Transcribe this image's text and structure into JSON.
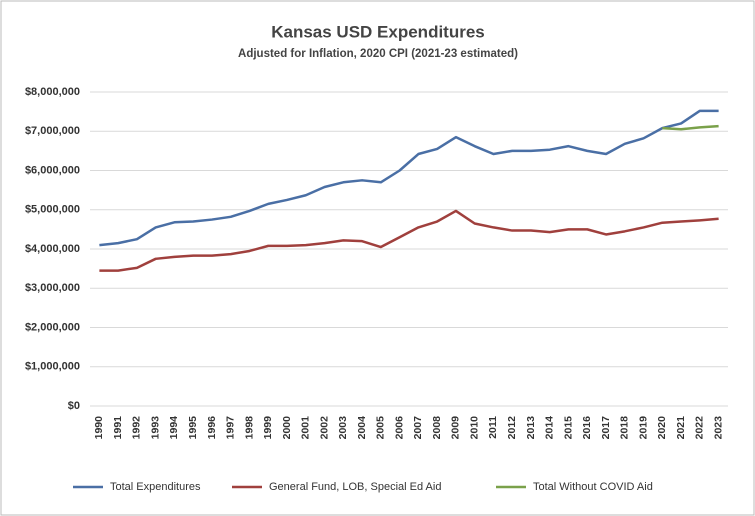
{
  "chart_data": {
    "type": "line",
    "title": "Kansas USD Expenditures",
    "subtitle": "Adjusted for Inflation, 2020 CPI (2021-23 estimated)",
    "categories": [
      "1990",
      "1991",
      "1992",
      "1993",
      "1994",
      "1995",
      "1996",
      "1997",
      "1998",
      "1999",
      "2000",
      "2001",
      "2002",
      "2003",
      "2004",
      "2005",
      "2006",
      "2007",
      "2008",
      "2009",
      "2010",
      "2011",
      "2012",
      "2013",
      "2014",
      "2015",
      "2016",
      "2017",
      "2018",
      "2019",
      "2020",
      "2021",
      "2022",
      "2023"
    ],
    "series": [
      {
        "name": "Total Expenditures",
        "color": "#4a6fa5",
        "values": [
          4100000,
          4150000,
          4250000,
          4550000,
          4680000,
          4700000,
          4750000,
          4820000,
          4970000,
          5150000,
          5250000,
          5370000,
          5580000,
          5700000,
          5750000,
          5700000,
          6000000,
          6420000,
          6550000,
          6850000,
          6620000,
          6420000,
          6500000,
          6500000,
          6530000,
          6620000,
          6500000,
          6420000,
          6680000,
          6820000,
          7080000,
          7200000,
          7520000,
          7520000
        ]
      },
      {
        "name": "General Fund, LOB, Special Ed Aid",
        "color": "#a0403d",
        "values": [
          3450000,
          3450000,
          3520000,
          3750000,
          3800000,
          3830000,
          3830000,
          3870000,
          3950000,
          4080000,
          4080000,
          4100000,
          4150000,
          4220000,
          4200000,
          4050000,
          4300000,
          4550000,
          4700000,
          4970000,
          4650000,
          4550000,
          4470000,
          4470000,
          4430000,
          4500000,
          4500000,
          4370000,
          4450000,
          4550000,
          4670000,
          4700000,
          4730000,
          4770000
        ]
      },
      {
        "name": "Total Without COVID Aid",
        "color": "#7aa14a",
        "values": [
          null,
          null,
          null,
          null,
          null,
          null,
          null,
          null,
          null,
          null,
          null,
          null,
          null,
          null,
          null,
          null,
          null,
          null,
          null,
          null,
          null,
          null,
          null,
          null,
          null,
          null,
          null,
          null,
          null,
          null,
          7080000,
          7050000,
          7100000,
          7130000
        ]
      }
    ],
    "ylim": [
      0,
      8000000
    ],
    "yticks": [
      {
        "value": 0,
        "label": "$0"
      },
      {
        "value": 1000000,
        "label": "$1,000,000"
      },
      {
        "value": 2000000,
        "label": "$2,000,000"
      },
      {
        "value": 3000000,
        "label": "$3,000,000"
      },
      {
        "value": 4000000,
        "label": "$4,000,000"
      },
      {
        "value": 5000000,
        "label": "$5,000,000"
      },
      {
        "value": 6000000,
        "label": "$6,000,000"
      },
      {
        "value": 7000000,
        "label": "$7,000,000"
      },
      {
        "value": 8000000,
        "label": "$8,000,000"
      }
    ],
    "grid": true,
    "legend": "bottom"
  }
}
